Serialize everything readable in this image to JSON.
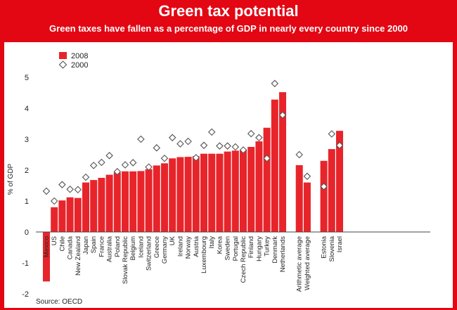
{
  "header": {
    "title": "Green tax potential",
    "subtitle": "Green taxes have fallen as a percentage of GDP in nearly every country since 2000"
  },
  "source": "Source: OECD",
  "colors": {
    "bar": "#e8242b",
    "frame": "#e30613",
    "marker_stroke": "#555555"
  },
  "chart_data": {
    "type": "bar",
    "ylabel": "% of GDP",
    "ylim": [
      -2,
      5
    ],
    "yticks": [
      -2,
      -1,
      0,
      1,
      2,
      3,
      4,
      5
    ],
    "legend": {
      "position": "top-left",
      "items": [
        "2008",
        "2000"
      ]
    },
    "categories": [
      "Mexico",
      "US",
      "Chile",
      "Canada",
      "New Zealand",
      "Japan",
      "Spain",
      "France",
      "Australia",
      "Poland",
      "Slovak Republic",
      "Belgium",
      "Iceland",
      "Switzerland",
      "Greece",
      "Germany",
      "UK",
      "Ireland",
      "Norway",
      "Austria",
      "Luxembourg",
      "Italy",
      "Korea",
      "Sweden",
      "Portugal",
      "Czech Republic",
      "Finland",
      "Hungary",
      "Turkey",
      "Denmark",
      "Netherlands",
      "Arithmetic average",
      "Weighted average",
      "Estonia",
      "Slovenia",
      "Israel"
    ],
    "series": [
      {
        "name": "2008",
        "kind": "bar",
        "values": [
          -1.6,
          0.8,
          1.02,
          1.12,
          1.1,
          1.6,
          1.68,
          1.75,
          1.85,
          1.92,
          1.96,
          1.96,
          1.97,
          2.03,
          2.15,
          2.22,
          2.38,
          2.42,
          2.43,
          2.45,
          2.53,
          2.53,
          2.53,
          2.6,
          2.63,
          2.66,
          2.75,
          2.93,
          3.37,
          4.28,
          4.52,
          2.16,
          1.6,
          2.3,
          2.68,
          3.27
        ]
      },
      {
        "name": "2000",
        "kind": "marker",
        "values": [
          1.32,
          1.0,
          1.53,
          1.38,
          1.37,
          1.77,
          2.15,
          2.25,
          2.47,
          1.95,
          2.17,
          2.24,
          3.0,
          2.1,
          2.72,
          2.38,
          3.05,
          2.85,
          2.93,
          2.4,
          2.8,
          3.23,
          2.78,
          2.78,
          2.75,
          2.65,
          3.18,
          3.05,
          2.38,
          4.8,
          3.78,
          2.5,
          1.8,
          1.47,
          3.17,
          2.8
        ]
      }
    ]
  }
}
